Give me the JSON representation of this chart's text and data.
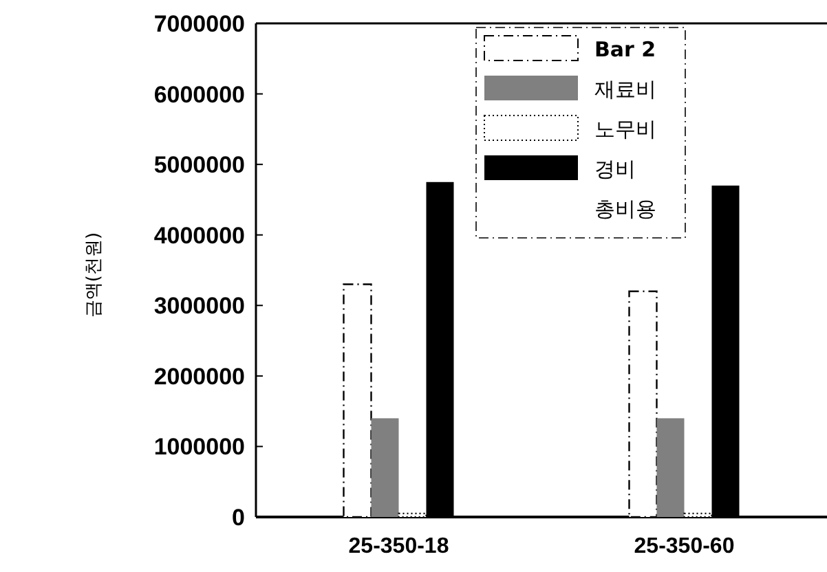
{
  "chart_data": {
    "type": "bar",
    "ylabel": "금액(천원)",
    "categories": [
      "25-350-18",
      "25-350-60"
    ],
    "series": [
      {
        "name": "Bar 2",
        "color": "#ffffff",
        "line_style": "dashed",
        "values": [
          3300000,
          3200000
        ]
      },
      {
        "name": "재료비",
        "color": "#808080",
        "values": [
          1400000,
          1400000
        ]
      },
      {
        "name": "노무비",
        "color": "#ffffff",
        "line_style": "dotted",
        "values": [
          50000,
          50000
        ]
      },
      {
        "name": "경비",
        "color": "#000000",
        "values": [
          4750000,
          4700000
        ]
      },
      {
        "name": "총비용",
        "values": [
          null,
          null
        ]
      }
    ],
    "ylim": [
      0,
      7000000
    ],
    "yticks": [
      0,
      1000000,
      2000000,
      3000000,
      4000000,
      5000000,
      6000000,
      7000000
    ],
    "legend": "top"
  }
}
